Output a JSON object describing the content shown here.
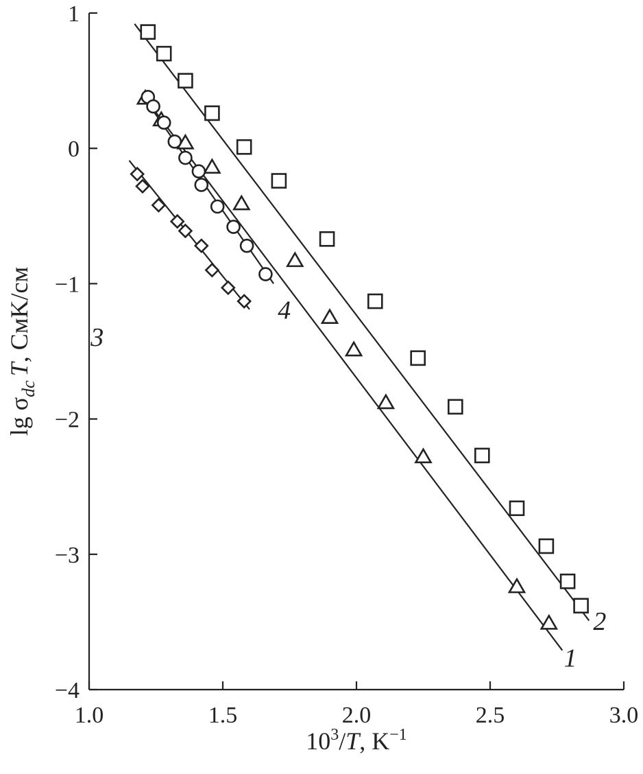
{
  "chart_data": {
    "type": "scatter",
    "xlabel_parts": {
      "base": "10",
      "sup": "3",
      "mid": "/",
      "var": "T",
      "unit": ", K",
      "unit_sup": "−1"
    },
    "ylabel_parts": {
      "pre": "lg σ",
      "sub": "dc",
      "var": "T",
      "unit": ", СмK/см"
    },
    "xlim": [
      1.0,
      3.0
    ],
    "ylim": [
      -4,
      1
    ],
    "xticks": [
      1.0,
      1.5,
      2.0,
      2.5,
      3.0
    ],
    "xtick_labels": [
      "1.0",
      "1.5",
      "2.0",
      "2.5",
      "3.0"
    ],
    "yticks": [
      1,
      0,
      -1,
      -2,
      -3,
      -4
    ],
    "ytick_labels": [
      "1",
      "0",
      "−1",
      "−2",
      "−3",
      "−4"
    ],
    "grid": false,
    "legend": "none",
    "series": [
      {
        "name": "1",
        "marker": "triangle",
        "label_pos": [
          2.8,
          -3.83
        ],
        "fit": [
          [
            1.21,
            0.37
          ],
          [
            2.77,
            -3.71
          ]
        ],
        "x": [
          1.21,
          1.27,
          1.36,
          1.46,
          1.57,
          1.77,
          1.9,
          1.99,
          2.11,
          2.25,
          2.6,
          2.72
        ],
        "y": [
          0.37,
          0.21,
          0.04,
          -0.14,
          -0.41,
          -0.83,
          -1.25,
          -1.49,
          -1.88,
          -2.28,
          -3.24,
          -3.51
        ]
      },
      {
        "name": "2",
        "marker": "square",
        "label_pos": [
          2.91,
          -3.56
        ],
        "fit": [
          [
            1.17,
            0.92
          ],
          [
            2.87,
            -3.49
          ]
        ],
        "x": [
          1.22,
          1.28,
          1.36,
          1.46,
          1.58,
          1.71,
          1.89,
          2.07,
          2.23,
          2.37,
          2.47,
          2.6,
          2.71,
          2.79,
          2.84
        ],
        "y": [
          0.86,
          0.7,
          0.5,
          0.26,
          0.01,
          -0.24,
          -0.67,
          -1.13,
          -1.55,
          -1.91,
          -2.27,
          -2.66,
          -2.94,
          -3.2,
          -3.38
        ]
      },
      {
        "name": "3",
        "marker": "diamond",
        "label_pos": [
          1.03,
          -1.46
        ],
        "fit": [
          [
            1.15,
            -0.09
          ],
          [
            1.6,
            -1.19
          ]
        ],
        "x": [
          1.18,
          1.2,
          1.26,
          1.33,
          1.36,
          1.42,
          1.46,
          1.52,
          1.58
        ],
        "y": [
          -0.19,
          -0.28,
          -0.42,
          -0.54,
          -0.61,
          -0.72,
          -0.9,
          -1.03,
          -1.13
        ]
      },
      {
        "name": "4",
        "marker": "circle",
        "label_pos": [
          1.73,
          -1.26
        ],
        "fit": [
          [
            1.2,
            0.39
          ],
          [
            1.69,
            -1.0
          ]
        ],
        "x": [
          1.22,
          1.24,
          1.28,
          1.32,
          1.36,
          1.41,
          1.42,
          1.48,
          1.54,
          1.59,
          1.66
        ],
        "y": [
          0.38,
          0.31,
          0.19,
          0.05,
          -0.07,
          -0.17,
          -0.27,
          -0.43,
          -0.58,
          -0.72,
          -0.93
        ]
      }
    ]
  }
}
